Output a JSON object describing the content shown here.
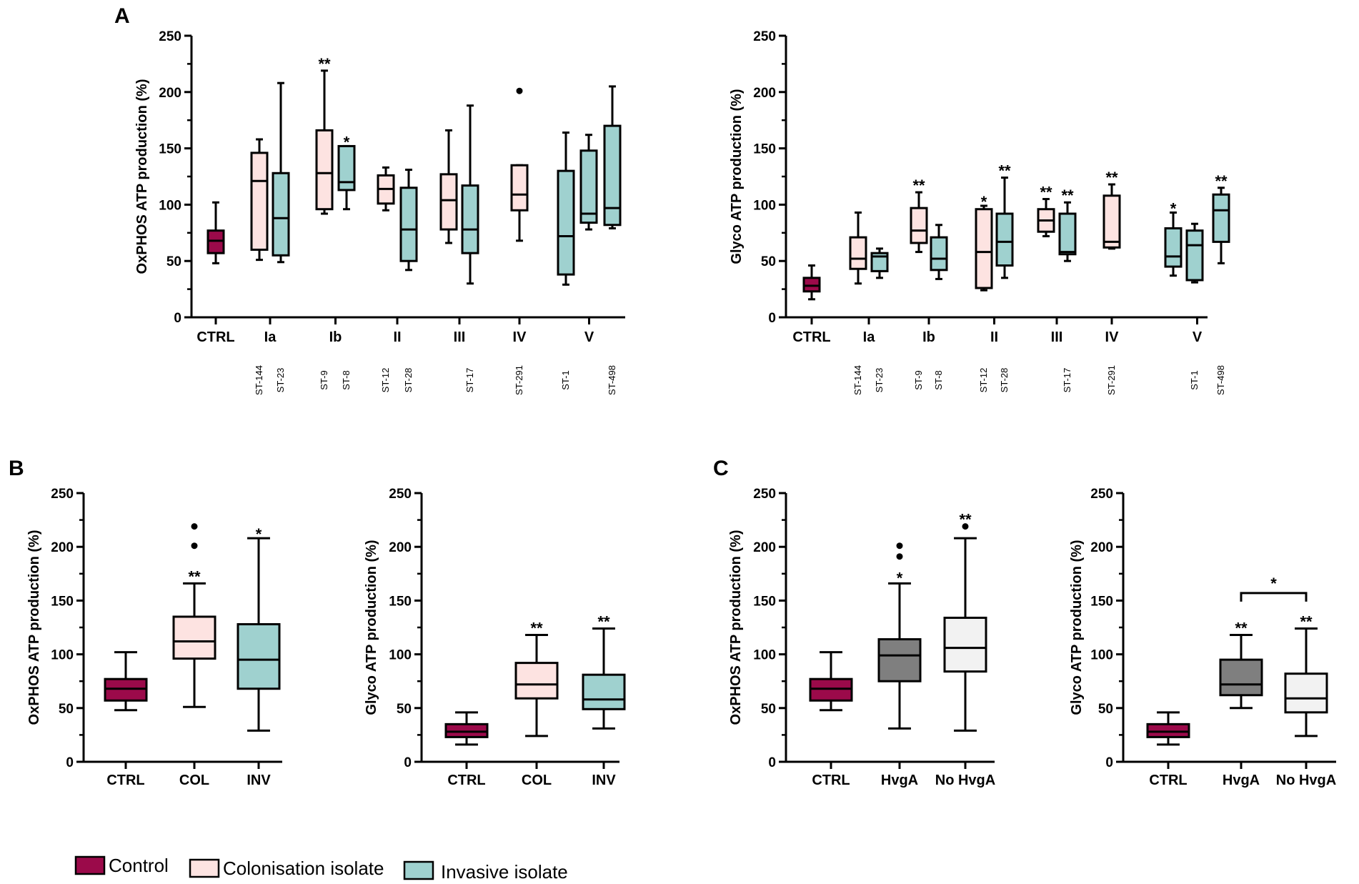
{
  "colors": {
    "Control": "#9b0a4a",
    "Colonisation": "#fde3e1",
    "Invasive": "#9fd1cf",
    "HvgA": "#7f7f7f",
    "NoHvgA": "#f2f2f2"
  },
  "panel_labels": [
    "A",
    "B",
    "C"
  ],
  "legend": [
    {
      "label": "Control",
      "key": "Control"
    },
    {
      "label": "Colonisation isolate",
      "key": "Colonisation"
    },
    {
      "label": "Invasive isolate",
      "key": "Invasive"
    }
  ],
  "chart_data": [
    {
      "id": "A-oxphos",
      "type": "box",
      "panel": "A",
      "ylabel": "OxPHOS ATP production (%)",
      "ylim": [
        0,
        250
      ],
      "yticks": [
        0,
        50,
        100,
        150,
        200,
        250
      ],
      "groups": [
        {
          "label": "CTRL",
          "boxes": [
            {
              "key": "Control",
              "st": "",
              "min": 48,
              "q1": 57,
              "median": 68,
              "q3": 77,
              "max": 102,
              "outliers": [],
              "sig": ""
            }
          ]
        },
        {
          "label": "Ia",
          "boxes": [
            {
              "key": "Colonisation",
              "st": "ST-144",
              "min": 51,
              "q1": 60,
              "median": 121,
              "q3": 146,
              "max": 158,
              "outliers": [],
              "sig": ""
            },
            {
              "key": "Invasive",
              "st": "ST-23",
              "min": 49,
              "q1": 55,
              "median": 88,
              "q3": 128,
              "max": 208,
              "outliers": [],
              "sig": ""
            }
          ]
        },
        {
          "label": "Ib",
          "boxes": [
            {
              "key": "Colonisation",
              "st": "ST-9",
              "min": 92,
              "q1": 96,
              "median": 128,
              "q3": 166,
              "max": 219,
              "outliers": [],
              "sig": "**"
            },
            {
              "key": "Invasive",
              "st": "ST-8",
              "min": 96,
              "q1": 113,
              "median": 120,
              "q3": 152,
              "max": 152,
              "outliers": [],
              "sig": "*"
            }
          ]
        },
        {
          "label": "II",
          "boxes": [
            {
              "key": "Colonisation",
              "st": "ST-12",
              "min": 95,
              "q1": 101,
              "median": 114,
              "q3": 126,
              "max": 133,
              "outliers": [],
              "sig": ""
            },
            {
              "key": "Invasive",
              "st": "ST-28",
              "min": 42,
              "q1": 50,
              "median": 78,
              "q3": 115,
              "max": 131,
              "outliers": [],
              "sig": ""
            }
          ]
        },
        {
          "label": "III",
          "boxes": [
            {
              "key": "Colonisation",
              "st": "",
              "min": 66,
              "q1": 78,
              "median": 104,
              "q3": 127,
              "max": 166,
              "outliers": [],
              "sig": ""
            },
            {
              "key": "Invasive",
              "st": "ST-17",
              "min": 30,
              "q1": 57,
              "median": 78,
              "q3": 117,
              "max": 188,
              "outliers": [],
              "sig": ""
            }
          ]
        },
        {
          "label": "IV",
          "boxes": [
            {
              "key": "Colonisation",
              "st": "ST-291",
              "min": 68,
              "q1": 95,
              "median": 109,
              "q3": 135,
              "max": 135,
              "outliers": [
                201
              ],
              "sig": ""
            }
          ]
        },
        {
          "label": "V",
          "boxes": [
            {
              "key": "Invasive",
              "st": "ST-1",
              "min": 29,
              "q1": 38,
              "median": 72,
              "q3": 130,
              "max": 164,
              "outliers": [],
              "sig": ""
            },
            {
              "key": "Invasive",
              "st": "",
              "min": 78,
              "q1": 84,
              "median": 92,
              "q3": 148,
              "max": 162,
              "outliers": [],
              "sig": ""
            },
            {
              "key": "Invasive",
              "st": "ST-498",
              "min": 79,
              "q1": 82,
              "median": 97,
              "q3": 170,
              "max": 205,
              "outliers": [],
              "sig": ""
            }
          ]
        }
      ]
    },
    {
      "id": "A-glyco",
      "type": "box",
      "panel": "A",
      "ylabel": "Glyco ATP production (%)",
      "ylim": [
        0,
        250
      ],
      "yticks": [
        0,
        50,
        100,
        150,
        200,
        250
      ],
      "groups": [
        {
          "label": "CTRL",
          "boxes": [
            {
              "key": "Control",
              "st": "",
              "min": 16,
              "q1": 23,
              "median": 28,
              "q3": 35,
              "max": 46,
              "outliers": [],
              "sig": ""
            }
          ]
        },
        {
          "label": "Ia",
          "boxes": [
            {
              "key": "Colonisation",
              "st": "ST-144",
              "min": 30,
              "q1": 43,
              "median": 52,
              "q3": 71,
              "max": 93,
              "outliers": [],
              "sig": ""
            },
            {
              "key": "Invasive",
              "st": "ST-23",
              "min": 35,
              "q1": 41,
              "median": 54,
              "q3": 57,
              "max": 61,
              "outliers": [],
              "sig": ""
            }
          ]
        },
        {
          "label": "Ib",
          "boxes": [
            {
              "key": "Colonisation",
              "st": "ST-9",
              "min": 58,
              "q1": 66,
              "median": 77,
              "q3": 97,
              "max": 111,
              "outliers": [],
              "sig": "**"
            },
            {
              "key": "Invasive",
              "st": "ST-8",
              "min": 34,
              "q1": 42,
              "median": 52,
              "q3": 71,
              "max": 82,
              "outliers": [],
              "sig": ""
            }
          ]
        },
        {
          "label": "II",
          "boxes": [
            {
              "key": "Colonisation",
              "st": "ST-12",
              "min": 24,
              "q1": 26,
              "median": 58,
              "q3": 96,
              "max": 99,
              "outliers": [],
              "sig": "*"
            },
            {
              "key": "Invasive",
              "st": "ST-28",
              "min": 35,
              "q1": 46,
              "median": 67,
              "q3": 92,
              "max": 124,
              "outliers": [],
              "sig": "**"
            }
          ]
        },
        {
          "label": "III",
          "boxes": [
            {
              "key": "Colonisation",
              "st": "",
              "min": 72,
              "q1": 76,
              "median": 86,
              "q3": 96,
              "max": 105,
              "outliers": [],
              "sig": "**"
            },
            {
              "key": "Invasive",
              "st": "ST-17",
              "min": 50,
              "q1": 56,
              "median": 58,
              "q3": 92,
              "max": 102,
              "outliers": [],
              "sig": "**"
            }
          ]
        },
        {
          "label": "IV",
          "boxes": [
            {
              "key": "Colonisation",
              "st": "ST-291",
              "min": 61,
              "q1": 62,
              "median": 67,
              "q3": 108,
              "max": 118,
              "outliers": [],
              "sig": "**"
            }
          ]
        },
        {
          "label": "V",
          "boxes": [
            {
              "key": "Invasive",
              "st": "",
              "min": 37,
              "q1": 45,
              "median": 54,
              "q3": 79,
              "max": 93,
              "outliers": [],
              "sig": "*"
            },
            {
              "key": "Invasive",
              "st": "ST-1",
              "min": 31,
              "q1": 33,
              "median": 64,
              "q3": 77,
              "max": 83,
              "outliers": [],
              "sig": ""
            },
            {
              "key": "Invasive",
              "st": "ST-498",
              "min": 48,
              "q1": 67,
              "median": 95,
              "q3": 109,
              "max": 115,
              "outliers": [],
              "sig": "**"
            }
          ]
        }
      ]
    },
    {
      "id": "B-oxphos",
      "type": "box",
      "panel": "B",
      "ylabel": "OxPHOS ATP production (%)",
      "ylim": [
        0,
        250
      ],
      "yticks": [
        0,
        50,
        100,
        150,
        200,
        250
      ],
      "groups": [
        {
          "label": "CTRL",
          "boxes": [
            {
              "key": "Control",
              "min": 48,
              "q1": 57,
              "median": 68,
              "q3": 77,
              "max": 102,
              "outliers": [],
              "sig": ""
            }
          ]
        },
        {
          "label": "COL",
          "boxes": [
            {
              "key": "Colonisation",
              "min": 51,
              "q1": 96,
              "median": 112,
              "q3": 135,
              "max": 166,
              "outliers": [
                201,
                219
              ],
              "sig": "**"
            }
          ]
        },
        {
          "label": "INV",
          "boxes": [
            {
              "key": "Invasive",
              "min": 29,
              "q1": 68,
              "median": 95,
              "q3": 128,
              "max": 208,
              "outliers": [],
              "sig": "*"
            }
          ]
        }
      ]
    },
    {
      "id": "B-glyco",
      "type": "box",
      "panel": "B",
      "ylabel": "Glyco ATP production (%)",
      "ylim": [
        0,
        250
      ],
      "yticks": [
        0,
        50,
        100,
        150,
        200,
        250
      ],
      "groups": [
        {
          "label": "CTRL",
          "boxes": [
            {
              "key": "Control",
              "min": 16,
              "q1": 23,
              "median": 28,
              "q3": 35,
              "max": 46,
              "outliers": [],
              "sig": ""
            }
          ]
        },
        {
          "label": "COL",
          "boxes": [
            {
              "key": "Colonisation",
              "min": 24,
              "q1": 59,
              "median": 72,
              "q3": 92,
              "max": 118,
              "outliers": [],
              "sig": "**"
            }
          ]
        },
        {
          "label": "INV",
          "boxes": [
            {
              "key": "Invasive",
              "min": 31,
              "q1": 49,
              "median": 58,
              "q3": 81,
              "max": 124,
              "outliers": [],
              "sig": "**"
            }
          ]
        }
      ]
    },
    {
      "id": "C-oxphos",
      "type": "box",
      "panel": "C",
      "ylabel": "OxPHOS ATP production (%)",
      "ylim": [
        0,
        250
      ],
      "yticks": [
        0,
        50,
        100,
        150,
        200,
        250
      ],
      "groups": [
        {
          "label": "CTRL",
          "boxes": [
            {
              "key": "Control",
              "min": 48,
              "q1": 57,
              "median": 68,
              "q3": 77,
              "max": 102,
              "outliers": [],
              "sig": ""
            }
          ]
        },
        {
          "label": "HvgA",
          "boxes": [
            {
              "key": "HvgA",
              "min": 31,
              "q1": 75,
              "median": 99,
              "q3": 114,
              "max": 166,
              "outliers": [
                191,
                201
              ],
              "sig": "*"
            }
          ]
        },
        {
          "label": "No HvgA",
          "boxes": [
            {
              "key": "NoHvgA",
              "min": 29,
              "q1": 84,
              "median": 106,
              "q3": 134,
              "max": 208,
              "outliers": [
                219
              ],
              "sig": "**"
            }
          ]
        }
      ]
    },
    {
      "id": "C-glyco",
      "type": "box",
      "panel": "C",
      "ylabel": "Glyco ATP production (%)",
      "ylim": [
        0,
        250
      ],
      "yticks": [
        0,
        50,
        100,
        150,
        200,
        250
      ],
      "bracket": {
        "from": 1,
        "to": 2,
        "value": 157,
        "sig": "*"
      },
      "groups": [
        {
          "label": "CTRL",
          "boxes": [
            {
              "key": "Control",
              "min": 16,
              "q1": 23,
              "median": 28,
              "q3": 35,
              "max": 46,
              "outliers": [],
              "sig": ""
            }
          ]
        },
        {
          "label": "HvgA",
          "boxes": [
            {
              "key": "HvgA",
              "min": 50,
              "q1": 62,
              "median": 72,
              "q3": 95,
              "max": 118,
              "outliers": [],
              "sig": "**"
            }
          ]
        },
        {
          "label": "No HvgA",
          "boxes": [
            {
              "key": "NoHvgA",
              "min": 24,
              "q1": 46,
              "median": 59,
              "q3": 82,
              "max": 124,
              "outliers": [],
              "sig": "**"
            }
          ]
        }
      ]
    }
  ]
}
